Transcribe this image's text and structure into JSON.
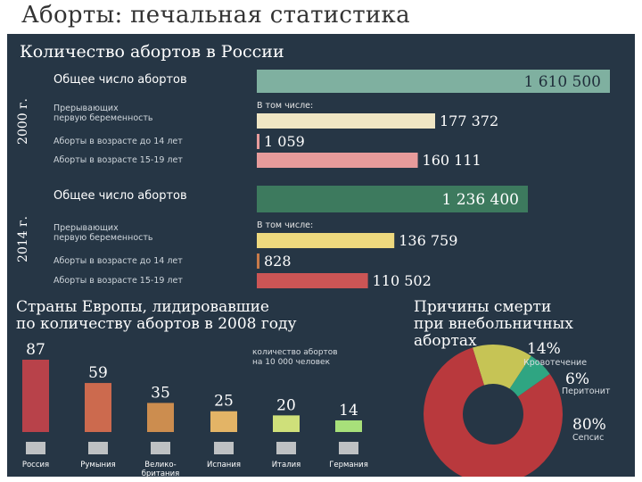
{
  "title": "Аборты: печальная статистика",
  "russia_section": {
    "heading": "Количество абортов в России",
    "including_label": "В том числе:",
    "groups": [
      {
        "year": "2000 г.",
        "rows": [
          {
            "label": "Общее число абортов",
            "value_text": "1 610 500",
            "value": 1610500,
            "color": "#7fb0a0",
            "main": true
          },
          {
            "label": "Прерывающих\nпервую беременность",
            "value_text": "177 372",
            "value": 177372,
            "color": "#efe6c4"
          },
          {
            "label": "Аборты в возрасте до 14 лет",
            "value_text": "1 059",
            "value": 1059,
            "color": "#e79b9b"
          },
          {
            "label": "Аборты в возрасте 15-19 лет",
            "value_text": "160 111",
            "value": 160111,
            "color": "#e79b9b"
          }
        ]
      },
      {
        "year": "2014 г.",
        "rows": [
          {
            "label": "Общее число абортов",
            "value_text": "1 236 400",
            "value": 1236400,
            "color": "#3d7a5e",
            "main": true
          },
          {
            "label": "Прерывающих\nпервую беременность",
            "value_text": "136 759",
            "value": 136759,
            "color": "#eed97e"
          },
          {
            "label": "Аборты в возрасте до 14 лет",
            "value_text": "828",
            "value": 828,
            "color": "#c77a4a"
          },
          {
            "label": "Аборты в возрасте 15-19 лет",
            "value_text": "110 502",
            "value": 110502,
            "color": "#cc5555"
          }
        ]
      }
    ]
  },
  "europe_section": {
    "heading": "Страны Европы, лидировавшие\nпо количеству абортов в 2008 году",
    "note": "количество абортов\nна 10 000 человек"
  },
  "causes_section": {
    "heading": "Причины смерти\nпри внебольничных\nабортах"
  },
  "chart_data": [
    {
      "type": "bar",
      "title": "Количество абортов в России",
      "categories": [
        "Общее число абортов",
        "Прерывающих первую беременность",
        "Аборты в возрасте до 14 лет",
        "Аборты в возрасте 15-19 лет"
      ],
      "series": [
        {
          "name": "2000 г.",
          "values": [
            1610500,
            177372,
            1059,
            160111
          ]
        },
        {
          "name": "2014 г.",
          "values": [
            1236400,
            136759,
            828,
            110502
          ]
        }
      ]
    },
    {
      "type": "bar",
      "title": "Страны Европы, лидировавшие по количеству абортов в 2008 году",
      "ylabel": "количество абортов на 10 000 человек",
      "categories": [
        "Россия",
        "Румыния",
        "Велико-\nбритания",
        "Испания",
        "Италия",
        "Германия"
      ],
      "values": [
        87,
        59,
        35,
        25,
        20,
        14
      ],
      "colors": [
        "#b8424a",
        "#cc6a4e",
        "#cc8d4f",
        "#e3b466",
        "#cfe07a",
        "#a8e07a"
      ]
    },
    {
      "type": "pie",
      "title": "Причины смерти при внебольничных абортах",
      "categories": [
        "Кровотечение",
        "Перитонит",
        "Сепсис"
      ],
      "values": [
        14,
        6,
        80
      ],
      "value_labels": [
        "14%",
        "6%",
        "80%"
      ],
      "colors": [
        "#c6c455",
        "#2fa582",
        "#b9393d"
      ]
    }
  ]
}
